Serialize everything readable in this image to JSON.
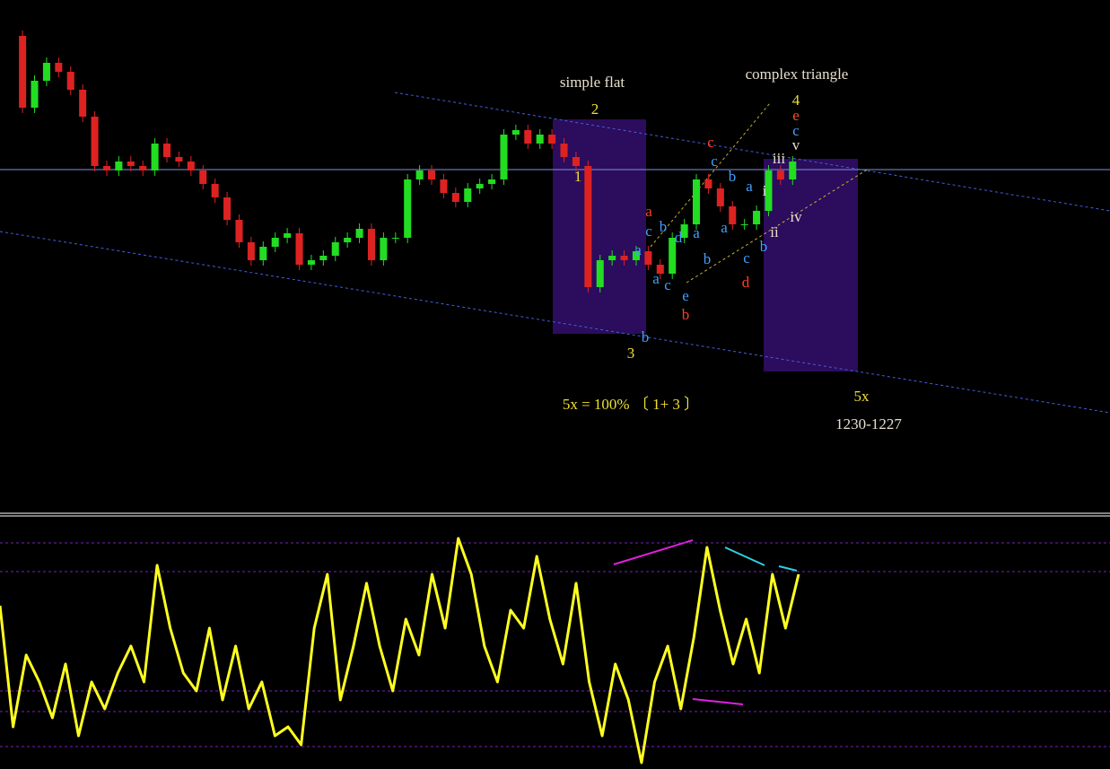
{
  "chart_data": [
    {
      "type": "candle-close",
      "values": [
        530,
        450,
        480,
        500,
        490,
        470,
        440,
        385,
        380,
        390,
        385,
        380,
        410,
        395,
        390,
        380,
        365,
        350,
        325,
        300,
        280,
        295,
        305,
        310,
        275,
        280,
        285,
        300,
        305,
        315,
        280,
        305,
        305,
        370,
        380,
        370,
        355,
        345,
        360,
        365,
        370,
        420,
        425,
        410,
        420,
        410,
        395,
        385,
        250,
        280,
        285,
        280,
        290,
        275,
        265,
        305,
        320,
        370,
        360,
        340,
        320,
        320,
        335,
        380,
        370,
        390
      ],
      "up_color": "#22dd22",
      "down_color": "#dd2222",
      "ylim": [
        0,
        570
      ],
      "annotations": [
        {
          "text": "simple flat",
          "color": "#e8e0d0"
        },
        {
          "text": "2",
          "color": "#f0e030"
        },
        {
          "text": "1",
          "color": "#f0e030"
        },
        {
          "text": "3",
          "color": "#f0e030"
        },
        {
          "text": "complex triangle",
          "color": "#e8e0d0"
        },
        {
          "text": "4",
          "color": "#f0e030"
        },
        {
          "text": "e",
          "color": "#ff5020"
        },
        {
          "text": "c",
          "color": "#40a0ff"
        },
        {
          "text": "v",
          "color": "#e8e0d0"
        },
        {
          "text": "iii",
          "color": "#e8e0d0"
        },
        {
          "text": "i",
          "color": "#e8e0d0"
        },
        {
          "text": "ii",
          "color": "#e8e0d0"
        },
        {
          "text": "iv",
          "color": "#e8e0d0"
        },
        {
          "text": "c",
          "color": "#ff4020"
        },
        {
          "text": "a",
          "color": "#ff4020"
        },
        {
          "text": "b",
          "color": "#ff4020"
        },
        {
          "text": "d",
          "color": "#ff4020"
        },
        {
          "text": "c",
          "color": "#40a0ff"
        },
        {
          "text": "b",
          "color": "#40a0ff"
        },
        {
          "text": "a",
          "color": "#40a0ff"
        },
        {
          "text": "a",
          "color": "#40a0ff"
        },
        {
          "text": "d",
          "color": "#40a0ff"
        },
        {
          "text": "b",
          "color": "#40a0ff"
        },
        {
          "text": "c",
          "color": "#40a0ff"
        },
        {
          "text": "a",
          "color": "#40a0ff"
        },
        {
          "text": "a",
          "color": "#40a0ff"
        },
        {
          "text": "c",
          "color": "#40a0ff"
        },
        {
          "text": "e",
          "color": "#40a0ff"
        },
        {
          "text": "b",
          "color": "#40a0ff"
        },
        {
          "text": "a",
          "color": "#40a0ff"
        },
        {
          "text": "c",
          "color": "#40a0ff"
        },
        {
          "text": "b",
          "color": "#40a0ff"
        },
        {
          "text": "b",
          "color": "#40a0ff"
        },
        {
          "text": "5x = 100% 〔 1+ 3 〕",
          "color": "#f0e030"
        },
        {
          "text": "5x",
          "color": "#f0e030"
        },
        {
          "text": "1230-1227",
          "color": "#e8e0d0"
        }
      ]
    },
    {
      "type": "line",
      "values": [
        182,
        47,
        127,
        97,
        57,
        117,
        37,
        97,
        67,
        107,
        137,
        97,
        227,
        157,
        107,
        87,
        157,
        77,
        137,
        67,
        97,
        37,
        47,
        27,
        157,
        217,
        77,
        137,
        207,
        137,
        87,
        167,
        127,
        217,
        157,
        257,
        217,
        137,
        97,
        177,
        157,
        237,
        167,
        117,
        207,
        97,
        37,
        117,
        77,
        7,
        97,
        137,
        67,
        147,
        247,
        177,
        117,
        167,
        107,
        217,
        157,
        217
      ],
      "color": "#ffff20",
      "ylim": [
        0,
        282
      ],
      "levels": [
        252,
        220,
        87,
        64,
        25
      ],
      "level_color": "#7a20c0"
    }
  ]
}
